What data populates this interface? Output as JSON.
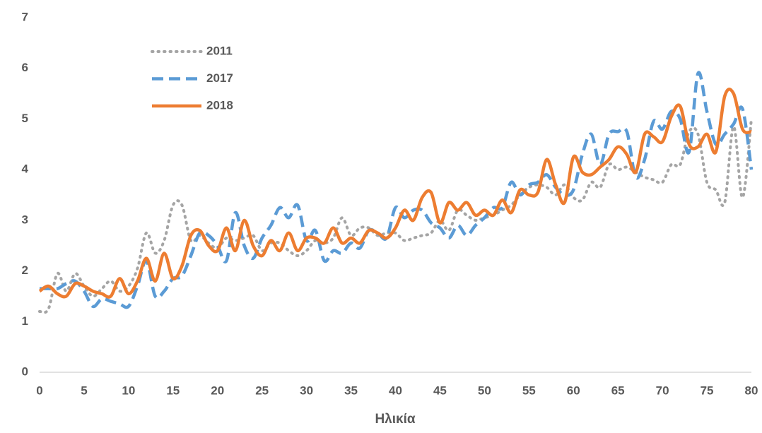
{
  "chart_data": {
    "type": "line",
    "x_label": "Ηλικία",
    "x": [
      0,
      1,
      2,
      3,
      4,
      5,
      6,
      7,
      8,
      9,
      10,
      11,
      12,
      13,
      14,
      15,
      16,
      17,
      18,
      19,
      20,
      21,
      22,
      23,
      24,
      25,
      26,
      27,
      28,
      29,
      30,
      31,
      32,
      33,
      34,
      35,
      36,
      37,
      38,
      39,
      40,
      41,
      42,
      43,
      44,
      45,
      46,
      47,
      48,
      49,
      50,
      51,
      52,
      53,
      54,
      55,
      56,
      57,
      58,
      59,
      60,
      61,
      62,
      63,
      64,
      65,
      66,
      67,
      68,
      69,
      70,
      71,
      72,
      73,
      74,
      75,
      76,
      77,
      78,
      79,
      80
    ],
    "xlim": [
      0,
      80
    ],
    "xticks": [
      0,
      5,
      10,
      15,
      20,
      25,
      30,
      35,
      40,
      45,
      50,
      55,
      60,
      65,
      70,
      75,
      80
    ],
    "ylim": [
      0,
      7
    ],
    "yticks": [
      0,
      1,
      2,
      3,
      4,
      5,
      6,
      7
    ],
    "series": [
      {
        "name": "2011",
        "color": "#a5a5a5",
        "dash": "dot",
        "values": [
          1.2,
          1.25,
          1.95,
          1.6,
          1.95,
          1.7,
          1.5,
          1.65,
          1.8,
          1.6,
          1.7,
          2.05,
          2.75,
          2.35,
          2.6,
          3.3,
          3.3,
          2.6,
          2.7,
          2.55,
          2.45,
          2.65,
          2.6,
          2.65,
          2.7,
          2.4,
          2.55,
          2.55,
          2.4,
          2.3,
          2.4,
          2.6,
          2.55,
          2.65,
          3.05,
          2.7,
          2.85,
          2.85,
          2.7,
          2.75,
          2.75,
          2.6,
          2.65,
          2.7,
          2.75,
          3.0,
          2.8,
          3.2,
          3.1,
          3.0,
          3.05,
          3.1,
          3.2,
          3.3,
          3.5,
          3.65,
          3.7,
          3.65,
          3.5,
          3.7,
          3.45,
          3.4,
          3.75,
          3.65,
          4.1,
          4.0,
          4.05,
          3.95,
          3.85,
          3.8,
          3.75,
          4.1,
          4.1,
          4.75,
          4.7,
          3.75,
          3.6,
          3.35,
          4.85,
          3.45,
          5.0
        ]
      },
      {
        "name": "2017",
        "color": "#5b9bd5",
        "dash": "dash",
        "values": [
          1.65,
          1.65,
          1.65,
          1.75,
          1.8,
          1.6,
          1.3,
          1.45,
          1.4,
          1.35,
          1.3,
          1.7,
          2.2,
          1.5,
          1.6,
          1.85,
          1.9,
          2.3,
          2.75,
          2.7,
          2.5,
          2.2,
          3.15,
          2.5,
          2.25,
          2.65,
          2.9,
          3.25,
          3.05,
          3.3,
          2.6,
          2.8,
          2.2,
          2.4,
          2.35,
          2.55,
          2.45,
          2.8,
          2.75,
          2.65,
          3.25,
          3.05,
          3.2,
          3.2,
          2.95,
          2.85,
          2.65,
          2.9,
          2.7,
          2.9,
          3.05,
          3.25,
          3.25,
          3.75,
          3.5,
          3.7,
          3.75,
          3.9,
          3.65,
          3.5,
          3.6,
          4.3,
          4.7,
          4.1,
          4.7,
          4.75,
          4.75,
          3.85,
          4.2,
          4.95,
          4.8,
          5.15,
          5.0,
          4.35,
          5.9,
          5.15,
          4.5,
          4.7,
          4.9,
          5.2,
          4.0
        ]
      },
      {
        "name": "2018",
        "color": "#ed7d31",
        "dash": "solid",
        "values": [
          1.6,
          1.7,
          1.55,
          1.5,
          1.75,
          1.7,
          1.6,
          1.55,
          1.5,
          1.85,
          1.55,
          1.8,
          2.25,
          1.8,
          2.35,
          1.85,
          2.1,
          2.7,
          2.8,
          2.5,
          2.4,
          2.85,
          2.4,
          3.0,
          2.5,
          2.3,
          2.6,
          2.4,
          2.75,
          2.4,
          2.65,
          2.65,
          2.55,
          2.85,
          2.55,
          2.65,
          2.55,
          2.8,
          2.75,
          2.65,
          2.85,
          3.2,
          3.0,
          3.45,
          3.55,
          2.95,
          3.35,
          3.2,
          3.35,
          3.1,
          3.2,
          3.1,
          3.4,
          3.15,
          3.6,
          3.5,
          3.55,
          4.2,
          3.7,
          3.35,
          4.25,
          3.95,
          3.9,
          4.05,
          4.2,
          4.45,
          4.3,
          3.95,
          4.7,
          4.65,
          4.55,
          5.05,
          5.25,
          4.5,
          4.45,
          4.7,
          4.35,
          5.45,
          5.5,
          4.8,
          4.75
        ]
      }
    ]
  }
}
